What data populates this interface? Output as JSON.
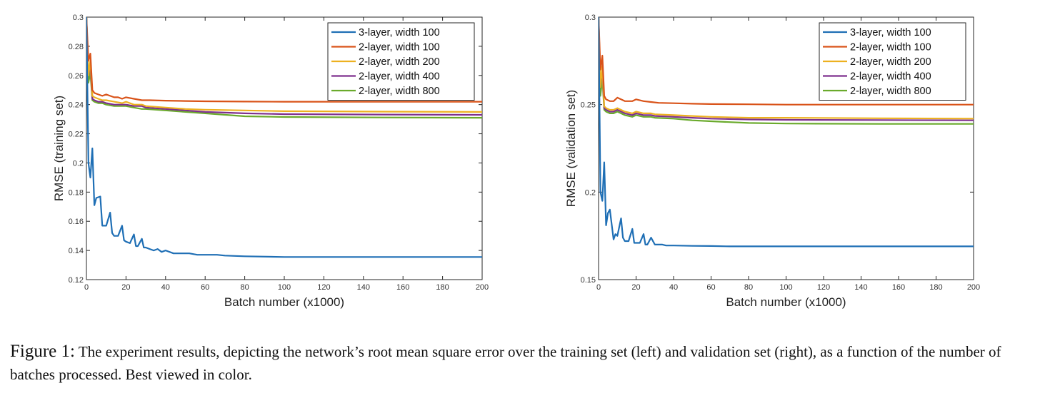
{
  "caption": {
    "lead": "Figure 1:",
    "text": "The experiment results, depicting the network’s root mean square error over the training set (left) and validation set (right), as a function of the number of batches processed. Best viewed in color."
  },
  "series_colors": [
    "#1f6fb5",
    "#d95319",
    "#edb120",
    "#7e2f8e",
    "#6aaa2c"
  ],
  "chart_data": [
    {
      "type": "line",
      "title": "",
      "xlabel": "Batch number (x1000)",
      "ylabel": "RMSE (training set)",
      "xlim": [
        0,
        200
      ],
      "ylim": [
        0.12,
        0.3
      ],
      "xticks": [
        0,
        20,
        40,
        60,
        80,
        100,
        120,
        140,
        160,
        180,
        200
      ],
      "xtick_labels": [
        "0",
        "20",
        "40",
        "60",
        "80",
        "100",
        "120",
        "140",
        "160",
        "180",
        "200"
      ],
      "yticks": [
        0.12,
        0.14,
        0.16,
        0.18,
        0.2,
        0.22,
        0.24,
        0.26,
        0.28,
        0.3
      ],
      "ytick_labels": [
        "0.12",
        "0.14",
        "0.16",
        "0.18",
        "0.2",
        "0.22",
        "0.24",
        "0.26",
        "0.28",
        "0.3"
      ],
      "grid": false,
      "legend_position": "top-right",
      "series": [
        {
          "name": "3-layer, width 100",
          "x": [
            0,
            1,
            2,
            3,
            4,
            5,
            7,
            8,
            9,
            10,
            12,
            13,
            14,
            16,
            18,
            19,
            20,
            22,
            24,
            25,
            26,
            28,
            29,
            30,
            32,
            34,
            36,
            38,
            40,
            44,
            48,
            52,
            56,
            60,
            66,
            70,
            80,
            100,
            120,
            140,
            160,
            180,
            200
          ],
          "y": [
            0.3,
            0.2,
            0.19,
            0.21,
            0.171,
            0.176,
            0.177,
            0.157,
            0.157,
            0.157,
            0.166,
            0.152,
            0.15,
            0.15,
            0.157,
            0.147,
            0.146,
            0.145,
            0.151,
            0.143,
            0.143,
            0.148,
            0.142,
            0.142,
            0.141,
            0.14,
            0.141,
            0.139,
            0.14,
            0.138,
            0.138,
            0.138,
            0.137,
            0.137,
            0.137,
            0.1365,
            0.136,
            0.1355,
            0.1355,
            0.1355,
            0.1355,
            0.1355,
            0.1355
          ]
        },
        {
          "name": "2-layer, width 100",
          "x": [
            0,
            1,
            2,
            3,
            4,
            6,
            8,
            10,
            12,
            14,
            16,
            18,
            20,
            24,
            28,
            32,
            40,
            50,
            60,
            80,
            100,
            150,
            200
          ],
          "y": [
            0.3,
            0.27,
            0.275,
            0.25,
            0.248,
            0.247,
            0.246,
            0.247,
            0.246,
            0.245,
            0.245,
            0.244,
            0.245,
            0.244,
            0.243,
            0.243,
            0.2427,
            0.2425,
            0.2423,
            0.2421,
            0.242,
            0.242,
            0.242
          ]
        },
        {
          "name": "2-layer, width 200",
          "x": [
            0,
            1,
            2,
            3,
            4,
            6,
            8,
            10,
            14,
            18,
            20,
            24,
            28,
            30,
            40,
            50,
            60,
            80,
            100,
            150,
            200
          ],
          "y": [
            0.3,
            0.26,
            0.27,
            0.246,
            0.245,
            0.244,
            0.243,
            0.243,
            0.242,
            0.241,
            0.242,
            0.24,
            0.24,
            0.239,
            0.238,
            0.237,
            0.2365,
            0.236,
            0.2355,
            0.2352,
            0.235
          ]
        },
        {
          "name": "2-layer, width 400",
          "x": [
            0,
            1,
            2,
            3,
            4,
            6,
            8,
            10,
            14,
            18,
            20,
            24,
            28,
            30,
            40,
            50,
            60,
            80,
            100,
            150,
            200
          ],
          "y": [
            0.3,
            0.26,
            0.267,
            0.244,
            0.243,
            0.242,
            0.242,
            0.241,
            0.24,
            0.24,
            0.24,
            0.239,
            0.239,
            0.238,
            0.237,
            0.236,
            0.235,
            0.234,
            0.2335,
            0.2332,
            0.233
          ]
        },
        {
          "name": "2-layer, width 800",
          "x": [
            0,
            1,
            2,
            3,
            4,
            6,
            8,
            10,
            14,
            18,
            20,
            24,
            28,
            30,
            40,
            50,
            60,
            80,
            100,
            150,
            200
          ],
          "y": [
            0.3,
            0.255,
            0.262,
            0.243,
            0.242,
            0.241,
            0.241,
            0.24,
            0.239,
            0.239,
            0.239,
            0.238,
            0.237,
            0.237,
            0.236,
            0.235,
            0.234,
            0.232,
            0.2315,
            0.2312,
            0.231
          ]
        }
      ]
    },
    {
      "type": "line",
      "title": "",
      "xlabel": "Batch number (x1000)",
      "ylabel": "RMSE (validation set)",
      "xlim": [
        0,
        200
      ],
      "ylim": [
        0.15,
        0.3
      ],
      "xticks": [
        0,
        20,
        40,
        60,
        80,
        100,
        120,
        140,
        160,
        180,
        200
      ],
      "xtick_labels": [
        "0",
        "20",
        "40",
        "60",
        "80",
        "100",
        "120",
        "140",
        "160",
        "180",
        "200"
      ],
      "yticks": [
        0.15,
        0.2,
        0.25,
        0.3
      ],
      "ytick_labels": [
        "0.15",
        "0.2",
        "0.25",
        "0.3"
      ],
      "grid": false,
      "legend_position": "top-right",
      "series": [
        {
          "name": "3-layer, width 100",
          "x": [
            0,
            1,
            2,
            3,
            4,
            5,
            6,
            8,
            9,
            10,
            12,
            13,
            14,
            16,
            18,
            19,
            20,
            22,
            24,
            25,
            26,
            28,
            30,
            32,
            34,
            36,
            40,
            50,
            60,
            70,
            80,
            100,
            120,
            140,
            160,
            180,
            200
          ],
          "y": [
            0.3,
            0.2,
            0.195,
            0.217,
            0.181,
            0.188,
            0.19,
            0.173,
            0.176,
            0.175,
            0.185,
            0.174,
            0.172,
            0.172,
            0.179,
            0.171,
            0.171,
            0.171,
            0.176,
            0.17,
            0.17,
            0.174,
            0.17,
            0.17,
            0.17,
            0.1695,
            0.1695,
            0.1693,
            0.1692,
            0.169,
            0.169,
            0.169,
            0.169,
            0.169,
            0.169,
            0.169,
            0.169
          ]
        },
        {
          "name": "2-layer, width 100",
          "x": [
            0,
            1,
            2,
            3,
            4,
            6,
            8,
            10,
            12,
            14,
            16,
            18,
            20,
            24,
            28,
            32,
            40,
            50,
            60,
            80,
            100,
            150,
            200
          ],
          "y": [
            0.3,
            0.27,
            0.278,
            0.255,
            0.253,
            0.252,
            0.252,
            0.254,
            0.253,
            0.252,
            0.252,
            0.252,
            0.253,
            0.252,
            0.2515,
            0.251,
            0.2508,
            0.2505,
            0.2503,
            0.2502,
            0.25,
            0.25,
            0.25
          ]
        },
        {
          "name": "2-layer, width 200",
          "x": [
            0,
            1,
            2,
            3,
            4,
            6,
            8,
            10,
            14,
            18,
            20,
            24,
            28,
            30,
            40,
            50,
            60,
            80,
            100,
            150,
            200
          ],
          "y": [
            0.3,
            0.26,
            0.272,
            0.249,
            0.248,
            0.247,
            0.247,
            0.248,
            0.246,
            0.245,
            0.246,
            0.245,
            0.245,
            0.2445,
            0.244,
            0.2435,
            0.243,
            0.2425,
            0.2425,
            0.2422,
            0.242
          ]
        },
        {
          "name": "2-layer, width 400",
          "x": [
            0,
            1,
            2,
            3,
            4,
            6,
            8,
            10,
            14,
            18,
            20,
            24,
            28,
            30,
            40,
            50,
            60,
            80,
            100,
            150,
            200
          ],
          "y": [
            0.3,
            0.26,
            0.27,
            0.248,
            0.247,
            0.246,
            0.246,
            0.247,
            0.245,
            0.244,
            0.245,
            0.244,
            0.244,
            0.2435,
            0.243,
            0.2425,
            0.242,
            0.2415,
            0.2413,
            0.2412,
            0.241
          ]
        },
        {
          "name": "2-layer, width 800",
          "x": [
            0,
            1,
            2,
            3,
            4,
            6,
            8,
            10,
            14,
            18,
            20,
            24,
            28,
            30,
            40,
            50,
            60,
            80,
            100,
            150,
            200
          ],
          "y": [
            0.3,
            0.255,
            0.265,
            0.247,
            0.246,
            0.245,
            0.245,
            0.246,
            0.244,
            0.243,
            0.244,
            0.243,
            0.243,
            0.2425,
            0.242,
            0.241,
            0.2405,
            0.2395,
            0.2392,
            0.239,
            0.239
          ]
        }
      ]
    }
  ]
}
